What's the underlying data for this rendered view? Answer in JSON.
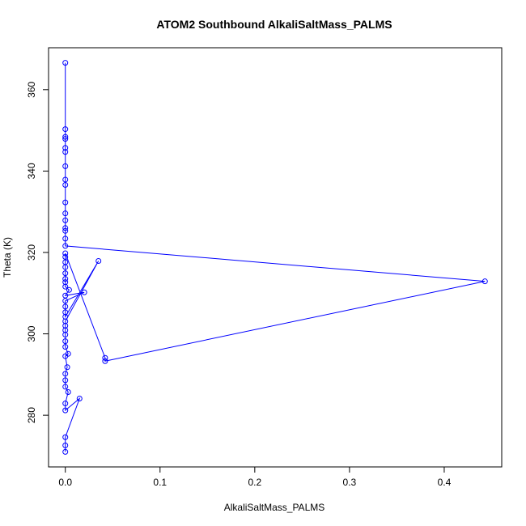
{
  "chart_data": {
    "type": "line",
    "title": "ATOM2 Southbound AlkaliSaltMass_PALMS",
    "xlabel": "AlkaliSaltMass_PALMS",
    "ylabel": "Theta (K)",
    "xlim": [
      -0.0177,
      0.4607
    ],
    "ylim": [
      267.3,
      370.3
    ],
    "x_ticks": [
      "0.0",
      "0.1",
      "0.2",
      "0.3",
      "0.4"
    ],
    "x_tick_values": [
      0,
      0.1,
      0.2,
      0.3,
      0.4
    ],
    "y_ticks": [
      "280",
      "300",
      "320",
      "340",
      "360"
    ],
    "y_tick_values": [
      280,
      300,
      320,
      340,
      360
    ],
    "grid": false,
    "markers": "open-circle",
    "color": "#0000ff",
    "series": [
      {
        "points": [
          [
            0.0,
            271.0
          ],
          [
            0.0,
            272.6
          ],
          [
            0.0,
            274.6
          ],
          [
            0.015,
            284.1
          ],
          [
            0.0,
            281.2
          ],
          [
            0.0,
            282.9
          ],
          [
            0.003,
            285.7
          ],
          [
            0.0,
            287.0
          ],
          [
            0.0,
            288.6
          ],
          [
            0.0,
            290.2
          ],
          [
            0.002,
            291.8
          ],
          [
            0.0,
            294.5
          ],
          [
            0.003,
            295.1
          ],
          [
            0.0,
            296.8
          ],
          [
            0.0,
            298.2
          ],
          [
            0.0,
            299.8
          ],
          [
            0.0,
            300.9
          ],
          [
            0.0,
            302.0
          ],
          [
            0.0,
            303.1
          ],
          [
            0.035,
            317.9
          ],
          [
            0.0,
            304.2
          ],
          [
            0.0,
            305.3
          ],
          [
            0.0,
            306.7
          ],
          [
            0.0,
            308.1
          ],
          [
            0.02,
            310.2
          ],
          [
            0.0,
            309.4
          ],
          [
            0.004,
            310.8
          ],
          [
            0.0,
            311.6
          ],
          [
            0.0,
            312.7
          ],
          [
            0.0,
            313.5
          ],
          [
            0.0,
            314.9
          ],
          [
            0.0,
            316.4
          ],
          [
            0.0,
            317.6
          ],
          [
            0.0,
            318.9
          ],
          [
            0.0,
            319.8
          ],
          [
            0.042,
            294.1
          ],
          [
            0.042,
            293.3
          ],
          [
            0.443,
            312.9
          ],
          [
            0.0,
            321.6
          ],
          [
            0.0,
            323.4
          ],
          [
            0.0,
            325.3
          ],
          [
            0.0,
            326.0
          ],
          [
            0.0,
            327.9
          ],
          [
            0.0,
            329.6
          ],
          [
            0.0,
            332.3
          ],
          [
            0.0,
            336.6
          ],
          [
            0.0,
            337.9
          ],
          [
            0.0,
            341.2
          ],
          [
            0.0,
            344.7
          ],
          [
            0.0,
            345.7
          ],
          [
            0.0,
            347.9
          ],
          [
            0.0,
            348.4
          ],
          [
            0.0,
            350.3
          ],
          [
            0.0,
            366.6
          ]
        ]
      }
    ]
  }
}
